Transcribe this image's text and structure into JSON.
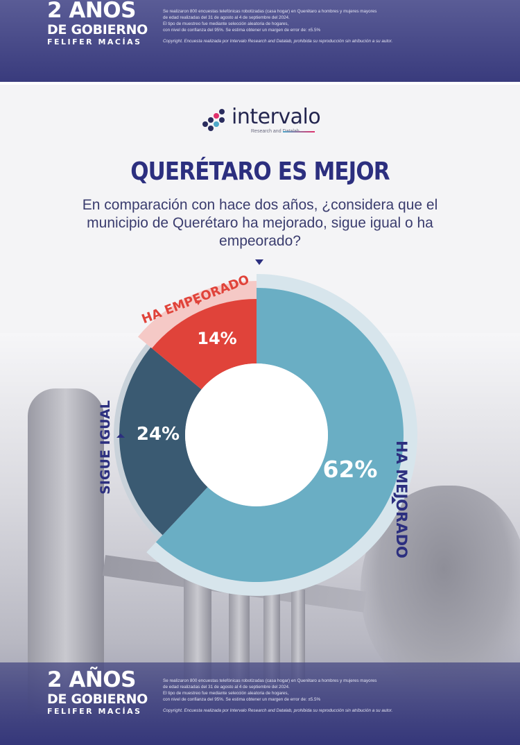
{
  "header": {
    "logo_line1": "2 AÑOS",
    "logo_line2": "DE GOBIERNO",
    "logo_line3": "FELIFER MACÍAS",
    "notes": [
      "Se realizaron 800 encuestas telefónicas robotizadas (casa hogar) en Querétaro a hombres y mujeres mayores",
      "de edad realizadas del 31 de agosto al 4 de septiembre del 2024.",
      "El tipo de muestreo fue mediante selección aleatoria de hogares,",
      "con nivel de confianza del 95%. Se estima obtener un margen de error de: ±5.5%"
    ],
    "copyright": "Copyright. Encuesta realizada por Intervalo Research and Datalab, prohibida su reproducción sin atribución a su autor."
  },
  "brand": {
    "name": "intervalo",
    "tagline": "Research and Datalab"
  },
  "title": "QUERÉTARO ES MEJOR",
  "question": "En comparación con hace dos años, ¿considera que el municipio de Querétaro ha mejorado, sigue igual o ha empeorado?",
  "colors": {
    "band": "#393b7d",
    "title": "#2c2f7f",
    "ha_mejorado": "#6aaec4",
    "sigue_igual": "#3a5a72",
    "ha_empeorado": "#e0433a"
  },
  "chart_data": {
    "type": "pie",
    "donut": true,
    "categories": [
      "HA MEJORADO",
      "SIGUE IGUAL",
      "HA EMPEORADO"
    ],
    "values": [
      62,
      24,
      14
    ],
    "value_labels": [
      "62%",
      "24%",
      "14%"
    ],
    "unit": "%"
  }
}
